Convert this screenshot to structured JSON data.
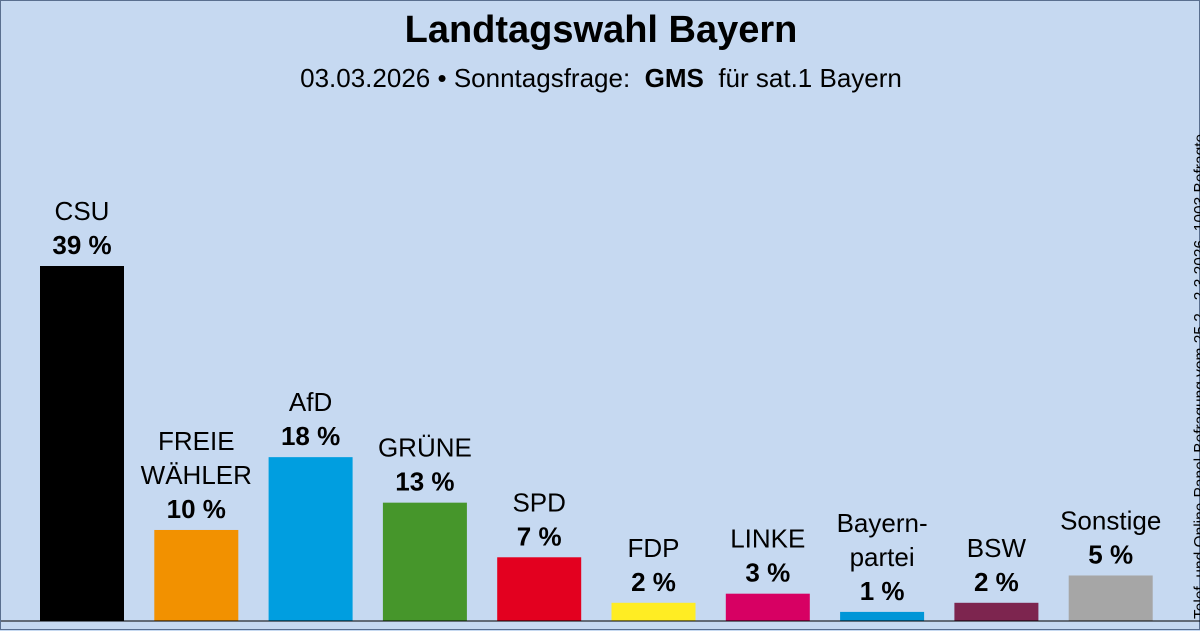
{
  "header": {
    "title": "Landtagswahl Bayern",
    "date": "03.03.2026",
    "separator": "•",
    "poll_type": "Sonntagsfrage:",
    "institute": "GMS",
    "client": "für sat.1 Bayern"
  },
  "side_note": "Telef. und Online-Panel-Befragung vom 25.2.–2.3.2026, 1003 Befragte",
  "chart_data": {
    "type": "bar",
    "title": "Landtagswahl Bayern",
    "unit": "%",
    "ylim": [
      0,
      39
    ],
    "grid": false,
    "categories": [
      {
        "label_lines": [
          "CSU"
        ],
        "value": 39,
        "value_label": "39 %",
        "color": "#000000"
      },
      {
        "label_lines": [
          "FREIE",
          "WÄHLER"
        ],
        "value": 10,
        "value_label": "10 %",
        "color": "#f29100"
      },
      {
        "label_lines": [
          "AfD"
        ],
        "value": 18,
        "value_label": "18 %",
        "color": "#009ee0"
      },
      {
        "label_lines": [
          "GRÜNE"
        ],
        "value": 13,
        "value_label": "13 %",
        "color": "#46962b"
      },
      {
        "label_lines": [
          "SPD"
        ],
        "value": 7,
        "value_label": "7 %",
        "color": "#e3001f"
      },
      {
        "label_lines": [
          "FDP"
        ],
        "value": 2,
        "value_label": "2 %",
        "color": "#ffed23"
      },
      {
        "label_lines": [
          "LINKE"
        ],
        "value": 3,
        "value_label": "3 %",
        "color": "#d70063"
      },
      {
        "label_lines": [
          "Bayern-",
          "partei"
        ],
        "value": 1,
        "value_label": "1 %",
        "color": "#0096d7"
      },
      {
        "label_lines": [
          "BSW"
        ],
        "value": 2,
        "value_label": "2 %",
        "color": "#7d254f"
      },
      {
        "label_lines": [
          "Sonstige"
        ],
        "value": 5,
        "value_label": "5 %",
        "color": "#a6a6a6"
      }
    ]
  }
}
